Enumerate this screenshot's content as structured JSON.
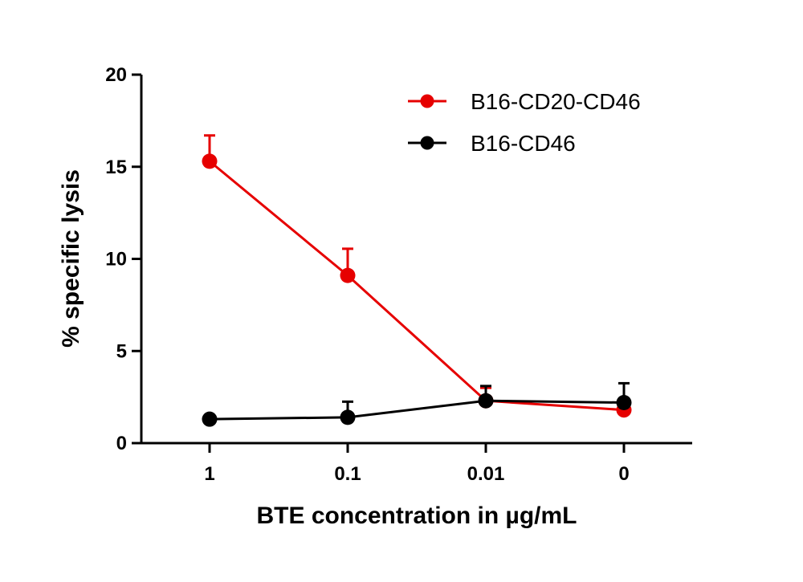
{
  "chart_data": {
    "type": "line",
    "categories": [
      "1",
      "0.1",
      "0.01",
      "0"
    ],
    "xlabel": "BTE concentration in µg/mL",
    "ylabel": "% specific lysis",
    "ylim": [
      0,
      20
    ],
    "yticks": [
      "0",
      "5",
      "10",
      "15",
      "20"
    ],
    "legend_position": "top-right",
    "series": [
      {
        "name": "B16-CD20-CD46",
        "color": "#e60000",
        "values": [
          15.3,
          9.1,
          2.3,
          1.8
        ],
        "errors": [
          1.4,
          1.45,
          0.7,
          0
        ]
      },
      {
        "name": "B16-CD46",
        "color": "#000000",
        "values": [
          1.3,
          1.4,
          2.3,
          2.2
        ],
        "errors": [
          0,
          0.85,
          0.8,
          1.05
        ]
      }
    ]
  }
}
